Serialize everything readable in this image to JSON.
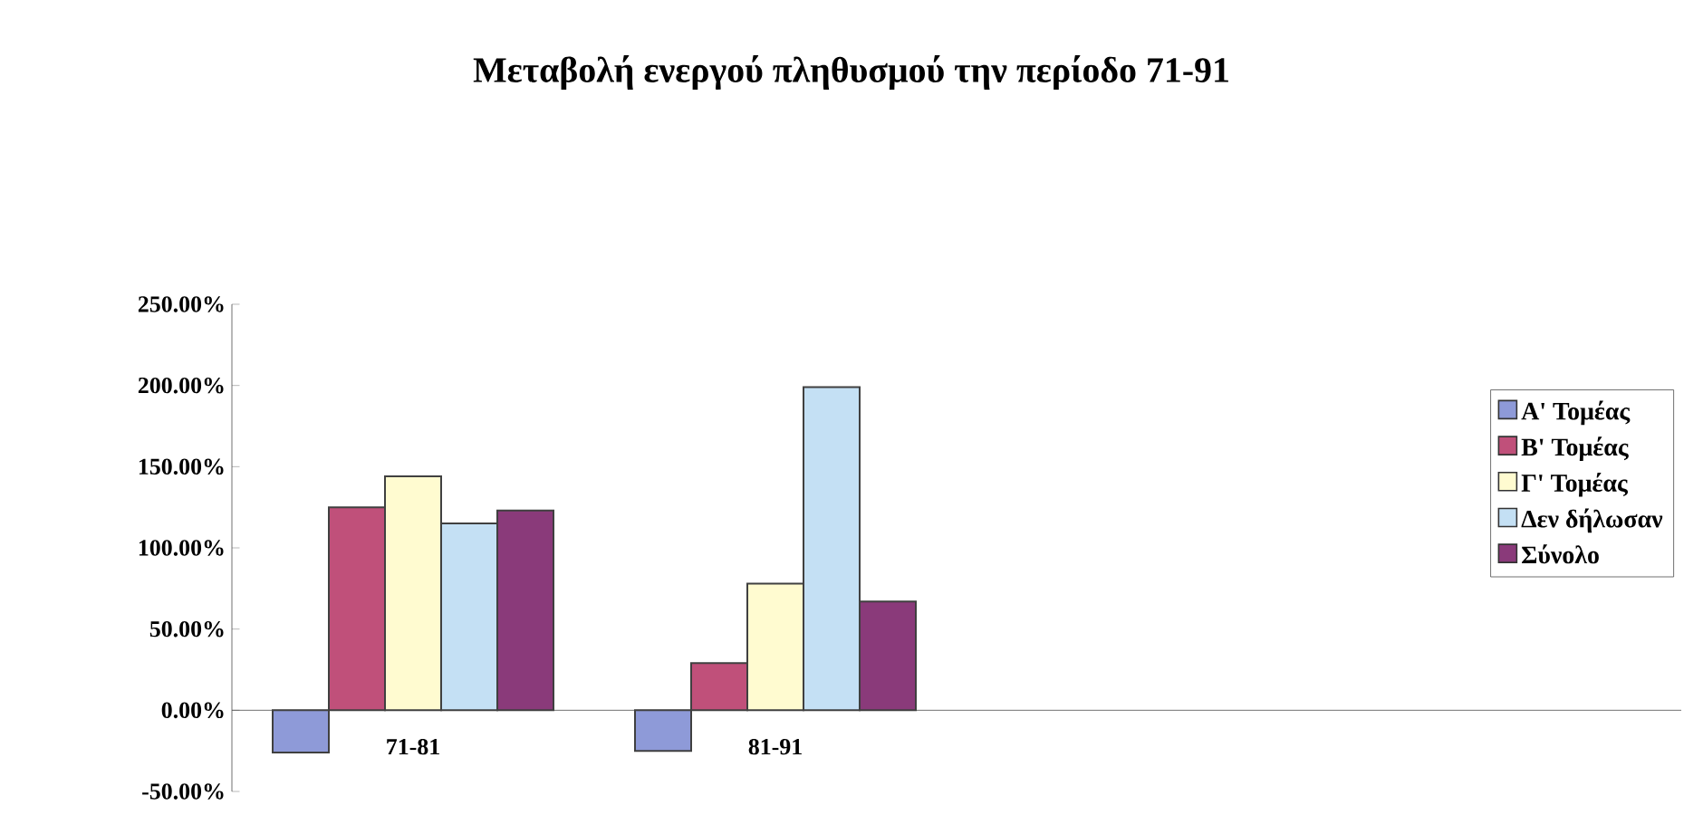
{
  "chart_data": {
    "type": "bar",
    "title": "Μεταβολή ενεργού πληθυσμού την περίοδο 71-91",
    "categories": [
      "71-81",
      "81-91",
      null,
      null
    ],
    "series": [
      {
        "name": "Α' Τομέας",
        "color": "#8e9ad8",
        "values": [
          -26,
          -25,
          null,
          null
        ]
      },
      {
        "name": "Β' Τομέας",
        "color": "#c0507a",
        "values": [
          125,
          29,
          null,
          null
        ]
      },
      {
        "name": "Γ' Τομέας",
        "color": "#fffbd0",
        "values": [
          144,
          78,
          null,
          null
        ]
      },
      {
        "name": "Δεν δήλωσαν",
        "color": "#c4e0f4",
        "values": [
          115,
          199,
          null,
          null
        ]
      },
      {
        "name": "Σύνολο",
        "color": "#8a3a7a",
        "values": [
          123,
          67,
          null,
          null
        ]
      }
    ],
    "ylim": [
      -50,
      250
    ],
    "yticks": [
      {
        "value": -50,
        "label": "-50.00%"
      },
      {
        "value": 0,
        "label": "0.00%"
      },
      {
        "value": 50,
        "label": "50.00%"
      },
      {
        "value": 100,
        "label": "100.00%"
      },
      {
        "value": 150,
        "label": "150.00%"
      },
      {
        "value": 200,
        "label": "200.00%"
      },
      {
        "value": 250,
        "label": "250.00%"
      }
    ],
    "grid": false,
    "legend": "top right"
  }
}
